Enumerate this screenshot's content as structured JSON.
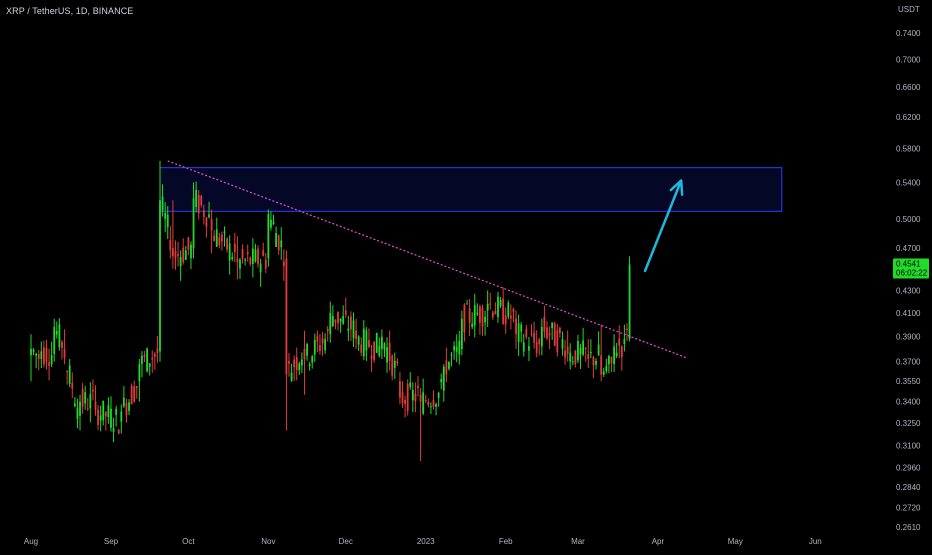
{
  "header": {
    "symbol_line": "XRP / TetherUS, 1D, BINANCE",
    "currency": "USDT"
  },
  "colors": {
    "background": "#000000",
    "up": "#1fdb2a",
    "down": "#e33b3b",
    "zone_fill": "#040826",
    "zone_stroke": "#2c3cff",
    "trendline": "#e34fd3",
    "arrow": "#1fb8dd",
    "axis_text": "#b2b5be",
    "price_tag": "#1fdb2a"
  },
  "chart_data": {
    "type": "candlestick",
    "title": "XRP / TetherUS, 1D, BINANCE",
    "y_scale": "log",
    "y_unit": "USDT",
    "yticks": [
      "0.7400",
      "0.7000",
      "0.6600",
      "0.6200",
      "0.5800",
      "0.5400",
      "0.5000",
      "0.4700",
      "0.4541",
      "0.4300",
      "0.4100",
      "0.3900",
      "0.3700",
      "0.3550",
      "0.3400",
      "0.3250",
      "0.3100",
      "0.2960",
      "0.2840",
      "0.2720",
      "0.2610"
    ],
    "xticks": [
      "Aug",
      "Sep",
      "Oct",
      "Nov",
      "Dec",
      "2023",
      "Feb",
      "Mar",
      "Apr",
      "May",
      "Jun"
    ],
    "last_price": "0.4541",
    "countdown": "06:02:22",
    "resistance_zone": {
      "price_low": 0.508,
      "price_high": 0.557,
      "x_start": "2022-09-20",
      "x_end": "2023-05-19"
    },
    "trendline": {
      "start": {
        "date": "2022-09-23",
        "price": 0.565
      },
      "end": {
        "date": "2023-04-12",
        "price": 0.373
      }
    },
    "projection_arrow": {
      "start": {
        "date": "2023-03-27",
        "price": 0.448
      },
      "end": {
        "date": "2023-04-10",
        "price": 0.542
      }
    },
    "candles_ohlc_approx": [
      {
        "date": "2022-08-01",
        "o": 0.375,
        "h": 0.392,
        "l": 0.355,
        "c": 0.38
      },
      {
        "date": "2022-08-05",
        "o": 0.372,
        "h": 0.386,
        "l": 0.365,
        "c": 0.378
      },
      {
        "date": "2022-08-10",
        "o": 0.376,
        "h": 0.405,
        "l": 0.37,
        "c": 0.398
      },
      {
        "date": "2022-08-14",
        "o": 0.38,
        "h": 0.396,
        "l": 0.368,
        "c": 0.373
      },
      {
        "date": "2022-08-20",
        "o": 0.33,
        "h": 0.345,
        "l": 0.32,
        "c": 0.34
      },
      {
        "date": "2022-08-26",
        "o": 0.34,
        "h": 0.352,
        "l": 0.33,
        "c": 0.334
      },
      {
        "date": "2022-09-05",
        "o": 0.326,
        "h": 0.338,
        "l": 0.318,
        "c": 0.333
      },
      {
        "date": "2022-09-12",
        "o": 0.355,
        "h": 0.372,
        "l": 0.34,
        "c": 0.368
      },
      {
        "date": "2022-09-20",
        "o": 0.378,
        "h": 0.565,
        "l": 0.37,
        "c": 0.52
      },
      {
        "date": "2022-09-25",
        "o": 0.47,
        "h": 0.52,
        "l": 0.45,
        "c": 0.462
      },
      {
        "date": "2022-10-03",
        "o": 0.47,
        "h": 0.54,
        "l": 0.46,
        "c": 0.522
      },
      {
        "date": "2022-10-10",
        "o": 0.5,
        "h": 0.51,
        "l": 0.465,
        "c": 0.488
      },
      {
        "date": "2022-10-20",
        "o": 0.46,
        "h": 0.482,
        "l": 0.44,
        "c": 0.456
      },
      {
        "date": "2022-11-01",
        "o": 0.46,
        "h": 0.51,
        "l": 0.452,
        "c": 0.505
      },
      {
        "date": "2022-11-08",
        "o": 0.46,
        "h": 0.468,
        "l": 0.32,
        "c": 0.36
      },
      {
        "date": "2022-11-15",
        "o": 0.38,
        "h": 0.395,
        "l": 0.345,
        "c": 0.372
      },
      {
        "date": "2022-11-25",
        "o": 0.392,
        "h": 0.42,
        "l": 0.385,
        "c": 0.41
      },
      {
        "date": "2022-12-05",
        "o": 0.395,
        "h": 0.405,
        "l": 0.38,
        "c": 0.388
      },
      {
        "date": "2022-12-15",
        "o": 0.38,
        "h": 0.396,
        "l": 0.372,
        "c": 0.39
      },
      {
        "date": "2022-12-22",
        "o": 0.355,
        "h": 0.362,
        "l": 0.338,
        "c": 0.343
      },
      {
        "date": "2022-12-30",
        "o": 0.345,
        "h": 0.35,
        "l": 0.3,
        "c": 0.34
      },
      {
        "date": "2023-01-08",
        "o": 0.348,
        "h": 0.368,
        "l": 0.34,
        "c": 0.366
      },
      {
        "date": "2023-01-15",
        "o": 0.38,
        "h": 0.412,
        "l": 0.375,
        "c": 0.405
      },
      {
        "date": "2023-01-25",
        "o": 0.412,
        "h": 0.43,
        "l": 0.398,
        "c": 0.418
      },
      {
        "date": "2023-02-05",
        "o": 0.405,
        "h": 0.412,
        "l": 0.38,
        "c": 0.392
      },
      {
        "date": "2023-02-15",
        "o": 0.382,
        "h": 0.405,
        "l": 0.375,
        "c": 0.398
      },
      {
        "date": "2023-02-25",
        "o": 0.382,
        "h": 0.395,
        "l": 0.37,
        "c": 0.376
      },
      {
        "date": "2023-03-05",
        "o": 0.376,
        "h": 0.388,
        "l": 0.365,
        "c": 0.372
      },
      {
        "date": "2023-03-10",
        "o": 0.375,
        "h": 0.4,
        "l": 0.355,
        "c": 0.36
      },
      {
        "date": "2023-03-15",
        "o": 0.368,
        "h": 0.392,
        "l": 0.362,
        "c": 0.382
      },
      {
        "date": "2023-03-19",
        "o": 0.384,
        "h": 0.4,
        "l": 0.378,
        "c": 0.388
      },
      {
        "date": "2023-03-21",
        "o": 0.388,
        "h": 0.462,
        "l": 0.386,
        "c": 0.4541
      }
    ]
  }
}
